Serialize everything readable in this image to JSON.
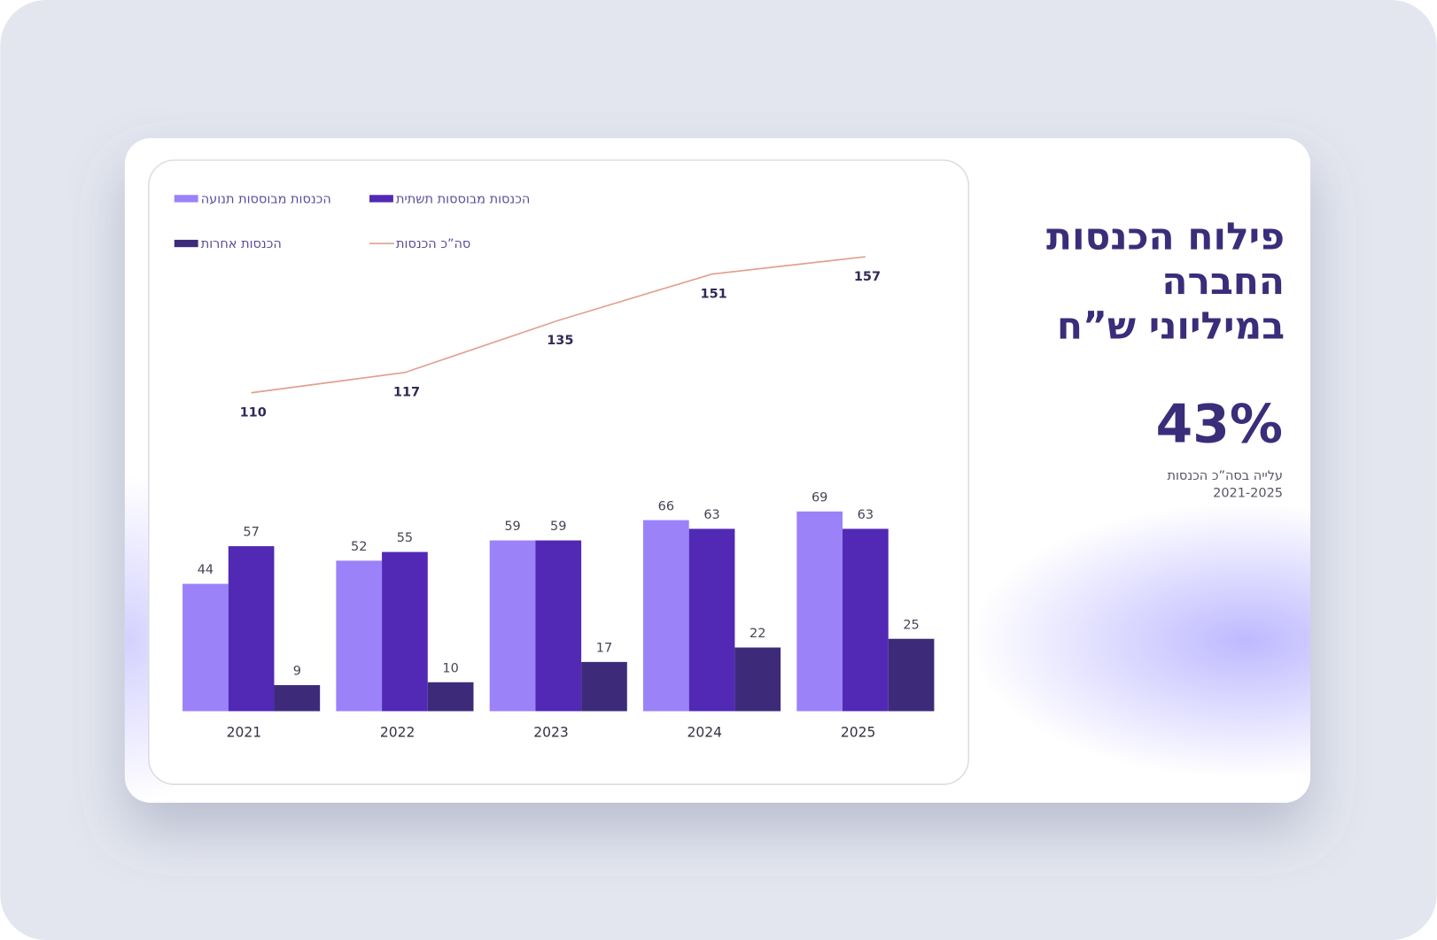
{
  "slide": {
    "title": [
      "פילוח הכנסות",
      "החברה",
      "במיליוני ש”ח"
    ],
    "stat": "43%",
    "stat_caption": [
      "עלייה בסה”כ הכנסות",
      "2021-2025"
    ]
  },
  "chart_data": {
    "type": "bar",
    "categories": [
      "2021",
      "2022",
      "2023",
      "2024",
      "2025"
    ],
    "series": [
      {
        "name": "הכנסות מבוססות תנועה",
        "color": "#9b82f8",
        "values": [
          44,
          52,
          59,
          66,
          69
        ]
      },
      {
        "name": "הכנסות מבוססות תשתית",
        "color": "#5229b5",
        "values": [
          57,
          55,
          59,
          63,
          63
        ]
      },
      {
        "name": "הכנסות אחרות",
        "color": "#3d2b7a",
        "values": [
          9,
          10,
          17,
          22,
          25
        ]
      },
      {
        "name": "סה”כ הכנסות",
        "type": "line",
        "color": "#e0a08f",
        "values": [
          110,
          117,
          135,
          151,
          157
        ]
      }
    ],
    "ylim": [
      0,
      160
    ]
  }
}
